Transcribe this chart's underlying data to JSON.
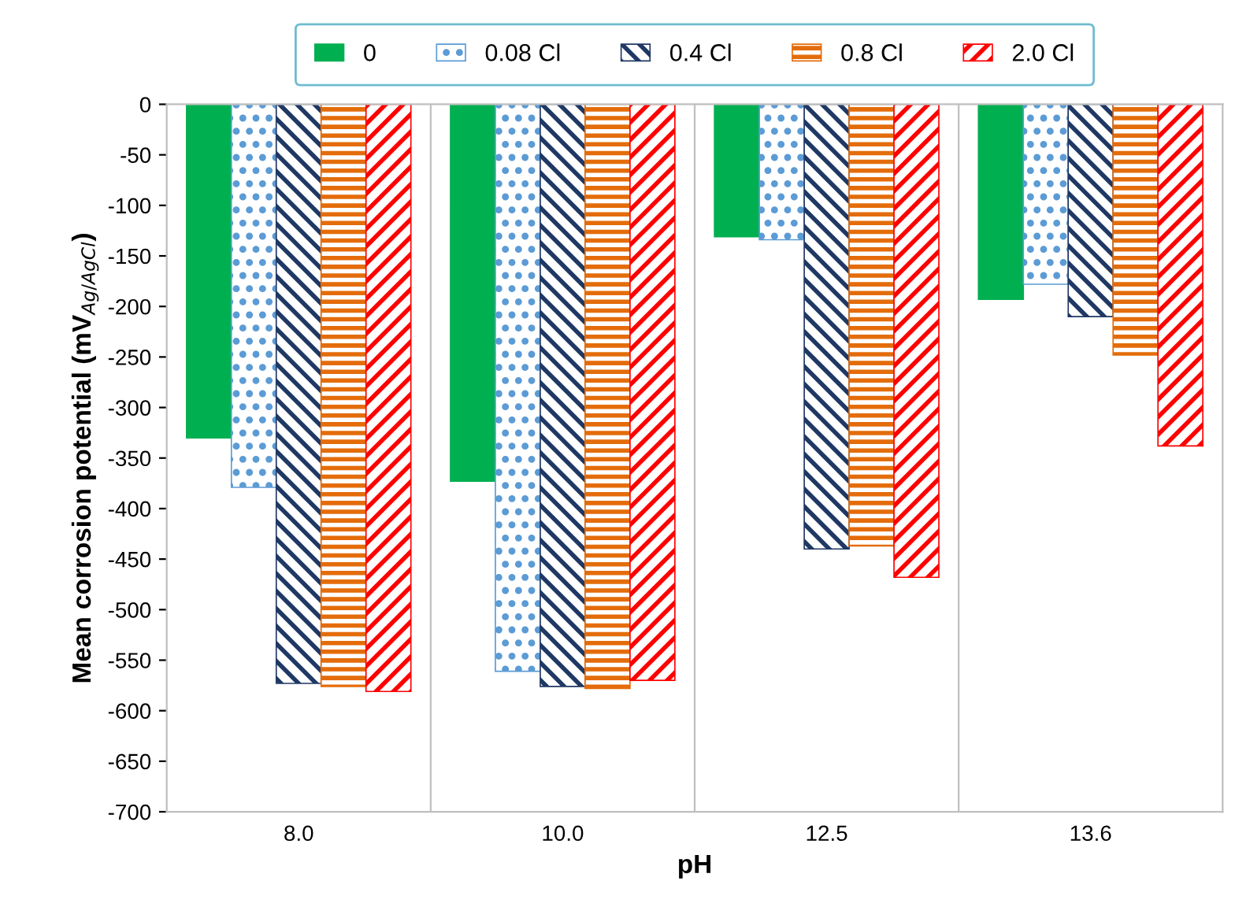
{
  "chart_data": {
    "type": "bar",
    "xlabel": "pH",
    "ylabel": "Mean corrosion potential (mV$_{Ag/AgCl}$)",
    "categories": [
      "8.0",
      "10.0",
      "12.5",
      "13.6"
    ],
    "series": [
      {
        "name": "0",
        "color": "#00b050",
        "values": [
          -330,
          -373,
          -131,
          -193
        ]
      },
      {
        "name": "0.08 Cl",
        "color": "#5b9bd5",
        "values": [
          -379,
          -561,
          -134,
          -178
        ]
      },
      {
        "name": "0.4 Cl",
        "color": "#1f3864",
        "values": [
          -573,
          -576,
          -440,
          -210
        ]
      },
      {
        "name": "0.8 Cl",
        "color": "#e46c0a",
        "values": [
          -576,
          -578,
          -437,
          -248
        ]
      },
      {
        "name": "2.0 Cl",
        "color": "#ff0000",
        "values": [
          -581,
          -570,
          -468,
          -338
        ]
      }
    ],
    "ylim": [
      -700,
      0
    ],
    "yticks": [
      0,
      -50,
      -100,
      -150,
      -200,
      -250,
      -300,
      -350,
      -400,
      -450,
      -500,
      -550,
      -600,
      -650,
      -700
    ],
    "grid": false,
    "legend": "top"
  }
}
